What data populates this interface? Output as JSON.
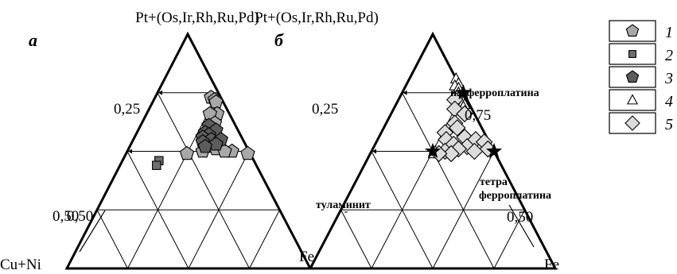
{
  "colors": {
    "type1": "#a8a8a8",
    "type2": "#6e6e6e",
    "type3": "#5c5c5c",
    "type4": "#ffffff",
    "type5": "#dcdcdc",
    "stroke": "#000000"
  },
  "chart_data": [
    {
      "type": "scatter",
      "subtype": "ternary",
      "panel_label": "а",
      "apex_top": "Pt+(Os,Ir,Rh,Ru,Pd)",
      "apex_left": "Cu+Ni",
      "apex_right": "Fe",
      "tick_labels": [
        "0,25",
        "0,50"
      ],
      "grid": true,
      "series": [
        {
          "legend": "1",
          "marker": "pentagon",
          "color": "#a8a8a8",
          "points": [
            {
              "pt": 0.73,
              "fe": 0.23,
              "cu": 0.04
            },
            {
              "pt": 0.72,
              "fe": 0.25,
              "cu": 0.03
            },
            {
              "pt": 0.71,
              "fe": 0.26,
              "cu": 0.03
            },
            {
              "pt": 0.66,
              "fe": 0.29,
              "cu": 0.05
            },
            {
              "pt": 0.66,
              "fe": 0.26,
              "cu": 0.08
            },
            {
              "pt": 0.62,
              "fe": 0.3,
              "cu": 0.08
            },
            {
              "pt": 0.56,
              "fe": 0.33,
              "cu": 0.11
            },
            {
              "pt": 0.52,
              "fe": 0.34,
              "cu": 0.14
            },
            {
              "pt": 0.5,
              "fe": 0.43,
              "cu": 0.07
            },
            {
              "pt": 0.51,
              "fe": 0.36,
              "cu": 0.13
            },
            {
              "pt": 0.5,
              "fe": 0.31,
              "cu": 0.19
            },
            {
              "pt": 0.49,
              "fe": 0.25,
              "cu": 0.26
            },
            {
              "pt": 0.49,
              "fe": 0.5,
              "cu": 0.01
            },
            {
              "pt": 0.5,
              "fe": 0.4,
              "cu": 0.1
            }
          ]
        },
        {
          "legend": "2",
          "marker": "square",
          "color": "#6e6e6e",
          "points": [
            {
              "pt": 0.46,
              "fe": 0.15,
              "cu": 0.39
            },
            {
              "pt": 0.44,
              "fe": 0.15,
              "cu": 0.41
            }
          ]
        },
        {
          "legend": "3",
          "marker": "pentagon",
          "color": "#5c5c5c",
          "points": [
            {
              "pt": 0.61,
              "fe": 0.28,
              "cu": 0.11
            },
            {
              "pt": 0.59,
              "fe": 0.32,
              "cu": 0.09
            },
            {
              "pt": 0.58,
              "fe": 0.28,
              "cu": 0.14
            },
            {
              "pt": 0.57,
              "fe": 0.3,
              "cu": 0.13
            },
            {
              "pt": 0.56,
              "fe": 0.28,
              "cu": 0.16
            },
            {
              "pt": 0.55,
              "fe": 0.32,
              "cu": 0.13
            },
            {
              "pt": 0.54,
              "fe": 0.29,
              "cu": 0.17
            },
            {
              "pt": 0.55,
              "fe": 0.36,
              "cu": 0.09
            },
            {
              "pt": 0.53,
              "fe": 0.35,
              "cu": 0.12
            },
            {
              "pt": 0.52,
              "fe": 0.31,
              "cu": 0.17
            }
          ]
        }
      ]
    },
    {
      "type": "scatter",
      "subtype": "ternary",
      "panel_label": "б",
      "apex_top": "Pt+(Os,Ir,Rh,Ru,Pd)",
      "apex_right": "Fe",
      "tick_labels": [
        "0,25",
        "0,50",
        "0,75",
        "0,50"
      ],
      "grid": true,
      "minerals": [
        {
          "name": "изоферроплатина",
          "pt": 0.75,
          "fe": 0.25,
          "cu": 0.0
        },
        {
          "name": "тетра",
          "name2": "ферроплатина",
          "pt": 0.5,
          "fe": 0.5,
          "cu": 0.0
        },
        {
          "name": "туламинит",
          "pt": 0.5,
          "fe": 0.25,
          "cu": 0.25
        }
      ],
      "series": [
        {
          "legend": "4",
          "marker": "triangle",
          "color": "#ffffff",
          "points": [
            {
              "pt": 0.81,
              "fe": 0.19,
              "cu": 0.0
            },
            {
              "pt": 0.79,
              "fe": 0.21,
              "cu": 0.0
            },
            {
              "pt": 0.78,
              "fe": 0.2,
              "cu": 0.02
            },
            {
              "pt": 0.77,
              "fe": 0.22,
              "cu": 0.01
            },
            {
              "pt": 0.75,
              "fe": 0.23,
              "cu": 0.02
            },
            {
              "pt": 0.74,
              "fe": 0.24,
              "cu": 0.02
            },
            {
              "pt": 0.73,
              "fe": 0.25,
              "cu": 0.02
            },
            {
              "pt": 0.72,
              "fe": 0.26,
              "cu": 0.02
            },
            {
              "pt": 0.71,
              "fe": 0.27,
              "cu": 0.02
            },
            {
              "pt": 0.7,
              "fe": 0.28,
              "cu": 0.02
            },
            {
              "pt": 0.69,
              "fe": 0.28,
              "cu": 0.03
            },
            {
              "pt": 0.5,
              "fe": 0.26,
              "cu": 0.24
            },
            {
              "pt": 0.49,
              "fe": 0.26,
              "cu": 0.25
            }
          ]
        },
        {
          "legend": "5",
          "marker": "diamond",
          "color": "#dcdcdc",
          "points": [
            {
              "pt": 0.72,
              "fe": 0.23,
              "cu": 0.05
            },
            {
              "pt": 0.68,
              "fe": 0.25,
              "cu": 0.07
            },
            {
              "pt": 0.66,
              "fe": 0.3,
              "cu": 0.04
            },
            {
              "pt": 0.62,
              "fe": 0.28,
              "cu": 0.1
            },
            {
              "pt": 0.6,
              "fe": 0.3,
              "cu": 0.1
            },
            {
              "pt": 0.58,
              "fe": 0.26,
              "cu": 0.16
            },
            {
              "pt": 0.56,
              "fe": 0.35,
              "cu": 0.09
            },
            {
              "pt": 0.55,
              "fe": 0.28,
              "cu": 0.17
            },
            {
              "pt": 0.55,
              "fe": 0.4,
              "cu": 0.05
            },
            {
              "pt": 0.54,
              "fe": 0.44,
              "cu": 0.02
            },
            {
              "pt": 0.53,
              "fe": 0.32,
              "cu": 0.15
            },
            {
              "pt": 0.52,
              "fe": 0.38,
              "cu": 0.1
            },
            {
              "pt": 0.51,
              "fe": 0.47,
              "cu": 0.02
            },
            {
              "pt": 0.51,
              "fe": 0.35,
              "cu": 0.14
            },
            {
              "pt": 0.5,
              "fe": 0.3,
              "cu": 0.2
            },
            {
              "pt": 0.5,
              "fe": 0.42,
              "cu": 0.08
            },
            {
              "pt": 0.49,
              "fe": 0.33,
              "cu": 0.18
            },
            {
              "pt": 0.49,
              "fe": 0.28,
              "cu": 0.23
            }
          ]
        }
      ]
    }
  ],
  "legend": {
    "items": [
      {
        "marker": "pentagon",
        "color": "#a8a8a8",
        "label": "1"
      },
      {
        "marker": "square",
        "color": "#6e6e6e",
        "label": "2"
      },
      {
        "marker": "pentagon",
        "color": "#5c5c5c",
        "label": "3"
      },
      {
        "marker": "triangle",
        "color": "#ffffff",
        "label": "4"
      },
      {
        "marker": "diamond",
        "color": "#dcdcdc",
        "label": "5"
      }
    ]
  }
}
